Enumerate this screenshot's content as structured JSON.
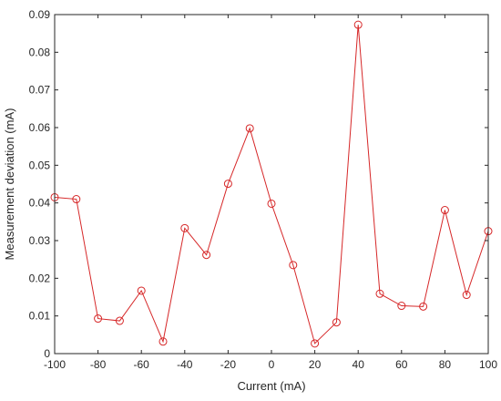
{
  "chart_data": {
    "type": "line",
    "title": "",
    "xlabel": "Current (mA)",
    "ylabel": "Measurement deviation (mA)",
    "xlim": [
      -100,
      100
    ],
    "ylim": [
      0,
      0.09
    ],
    "xticks": [
      -100,
      -80,
      -60,
      -40,
      -20,
      0,
      20,
      40,
      60,
      80,
      100
    ],
    "xtick_labels": [
      "-100",
      "-80",
      "-60",
      "-40",
      "-20",
      "0",
      "20",
      "40",
      "60",
      "80",
      "100"
    ],
    "yticks": [
      0,
      0.01,
      0.02,
      0.03,
      0.04,
      0.05,
      0.06,
      0.07,
      0.08,
      0.09
    ],
    "ytick_labels": [
      "0",
      "0.01",
      "0.02",
      "0.03",
      "0.04",
      "0.05",
      "0.06",
      "0.07",
      "0.08",
      "0.09"
    ],
    "grid": false,
    "series": [
      {
        "color": "#d62728",
        "marker": "circle",
        "x": [
          -100,
          -90,
          -80,
          -70,
          -60,
          -50,
          -40,
          -30,
          -20,
          -10,
          0,
          10,
          20,
          30,
          40,
          50,
          60,
          70,
          80,
          90,
          100
        ],
        "y": [
          0.0415,
          0.041,
          0.0093,
          0.0087,
          0.0167,
          0.0032,
          0.0333,
          0.0262,
          0.0451,
          0.0598,
          0.0398,
          0.0235,
          0.0027,
          0.0083,
          0.0873,
          0.0159,
          0.0127,
          0.0125,
          0.0381,
          0.0156,
          0.0325
        ]
      }
    ]
  }
}
